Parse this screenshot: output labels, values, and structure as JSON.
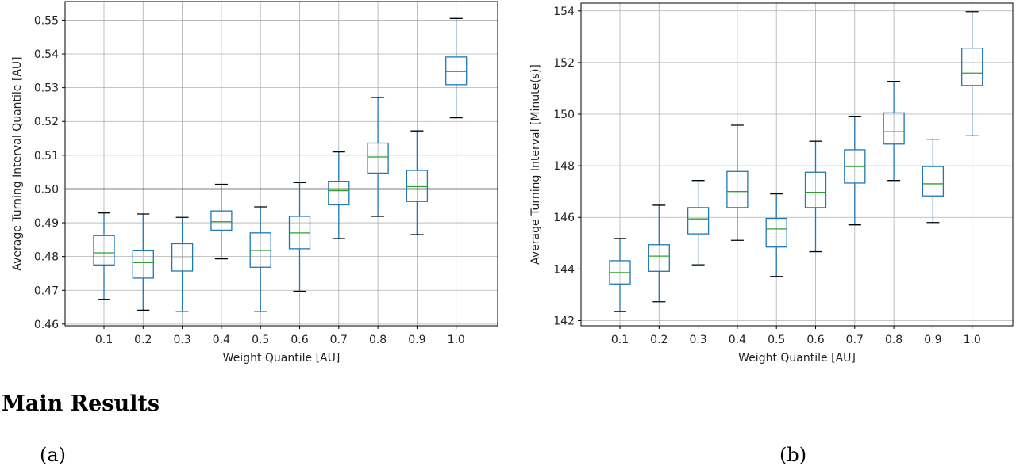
{
  "section_heading": "Main Results",
  "captions": [
    "(a)",
    "(b)"
  ],
  "chart_data": [
    {
      "type": "boxplot",
      "xlabel": "Weight Quantile [AU]",
      "ylabel": "Average Turning Interval Quantile [AU]",
      "categories": [
        "0.1",
        "0.2",
        "0.3",
        "0.4",
        "0.5",
        "0.6",
        "0.7",
        "0.8",
        "0.9",
        "1.0"
      ],
      "ylim": [
        0.4595,
        0.5555
      ],
      "yticks": [
        0.46,
        0.47,
        0.48,
        0.49,
        0.5,
        0.51,
        0.52,
        0.53,
        0.54,
        0.55
      ],
      "ytick_labels": [
        "0.46",
        "0.47",
        "0.48",
        "0.49",
        "0.50",
        "0.51",
        "0.52",
        "0.53",
        "0.54",
        "0.55"
      ],
      "grid": true,
      "reference_line": 0.5,
      "boxes": [
        {
          "whislo": 0.4673,
          "q1": 0.4775,
          "med": 0.4811,
          "q3": 0.4862,
          "whishi": 0.4929
        },
        {
          "whislo": 0.4641,
          "q1": 0.4736,
          "med": 0.4782,
          "q3": 0.4817,
          "whishi": 0.4926
        },
        {
          "whislo": 0.4638,
          "q1": 0.4757,
          "med": 0.4796,
          "q3": 0.4838,
          "whishi": 0.4916
        },
        {
          "whislo": 0.4793,
          "q1": 0.4878,
          "med": 0.4903,
          "q3": 0.4935,
          "whishi": 0.5014
        },
        {
          "whislo": 0.4638,
          "q1": 0.4768,
          "med": 0.4818,
          "q3": 0.487,
          "whishi": 0.4947
        },
        {
          "whislo": 0.4697,
          "q1": 0.4823,
          "med": 0.487,
          "q3": 0.4919,
          "whishi": 0.5019
        },
        {
          "whislo": 0.4853,
          "q1": 0.4953,
          "med": 0.4995,
          "q3": 0.5023,
          "whishi": 0.511
        },
        {
          "whislo": 0.4919,
          "q1": 0.5047,
          "med": 0.5095,
          "q3": 0.5136,
          "whishi": 0.5271
        },
        {
          "whislo": 0.4865,
          "q1": 0.4963,
          "med": 0.5007,
          "q3": 0.5055,
          "whishi": 0.5172
        },
        {
          "whislo": 0.5211,
          "q1": 0.5309,
          "med": 0.5348,
          "q3": 0.5391,
          "whishi": 0.5505
        }
      ],
      "colors": {
        "box": "#1f77b4",
        "median": "#2ca02c",
        "whisker_cap": "#000000",
        "grid": "#b0b0b0",
        "reference_line": "#000000"
      }
    },
    {
      "type": "boxplot",
      "xlabel": "Weight Quantile [AU]",
      "ylabel": "Average Turning Interval [Minute(s)]",
      "categories": [
        "0.1",
        "0.2",
        "0.3",
        "0.4",
        "0.5",
        "0.6",
        "0.7",
        "0.8",
        "0.9",
        "1.0"
      ],
      "ylim": [
        141.8,
        154.3
      ],
      "yticks": [
        142,
        144,
        146,
        148,
        150,
        152,
        154
      ],
      "ytick_labels": [
        "142",
        "144",
        "146",
        "148",
        "150",
        "152",
        "154"
      ],
      "grid": true,
      "boxes": [
        {
          "whislo": 142.35,
          "q1": 143.42,
          "med": 143.86,
          "q3": 144.32,
          "whishi": 145.18
        },
        {
          "whislo": 142.73,
          "q1": 143.91,
          "med": 144.5,
          "q3": 144.94,
          "whishi": 146.47
        },
        {
          "whislo": 144.16,
          "q1": 145.36,
          "med": 145.94,
          "q3": 146.38,
          "whishi": 147.43
        },
        {
          "whislo": 145.11,
          "q1": 146.38,
          "med": 147.0,
          "q3": 147.78,
          "whishi": 149.57
        },
        {
          "whislo": 143.71,
          "q1": 144.85,
          "med": 145.55,
          "q3": 145.96,
          "whishi": 146.91
        },
        {
          "whislo": 144.67,
          "q1": 146.38,
          "med": 146.97,
          "q3": 147.75,
          "whishi": 148.95
        },
        {
          "whislo": 145.71,
          "q1": 147.33,
          "med": 147.97,
          "q3": 148.62,
          "whishi": 149.92
        },
        {
          "whislo": 147.43,
          "q1": 148.84,
          "med": 149.32,
          "q3": 150.05,
          "whishi": 151.27
        },
        {
          "whislo": 145.8,
          "q1": 146.83,
          "med": 147.3,
          "q3": 147.97,
          "whishi": 149.03
        },
        {
          "whislo": 149.16,
          "q1": 151.11,
          "med": 151.59,
          "q3": 152.56,
          "whishi": 153.97
        }
      ],
      "colors": {
        "box": "#1f77b4",
        "median": "#2ca02c",
        "whisker_cap": "#000000",
        "grid": "#b0b0b0"
      }
    }
  ]
}
